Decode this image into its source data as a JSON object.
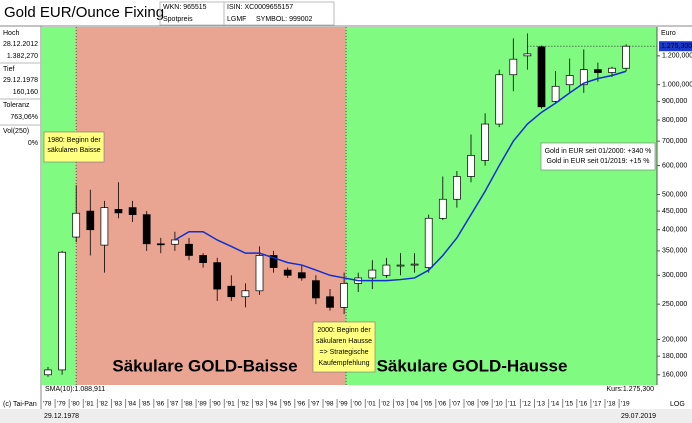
{
  "header": {
    "title": "Gold EUR/Ounce Fixing",
    "wkn": "WKN: 965515",
    "source": "Spotpreis",
    "isin": "ISIN: XC0009655157",
    "exchange": "LGMF",
    "symbol": "SYMBOL: 999002"
  },
  "stats": [
    "Hoch",
    "28.12.2012",
    "1.382,270",
    "Tief",
    "29.12.1978",
    "160,160",
    "Toleranz",
    "763,06%",
    "Vol(250)",
    "0%"
  ],
  "footer": {
    "copyright": "(c) Tai-Pan",
    "scale": "LOG",
    "start_date": "29.12.1978",
    "end_date": "29.07.2019"
  },
  "chart_data": {
    "type": "candlestick",
    "y_axis_label": "Euro",
    "log_scale": true,
    "background": "#80fa80",
    "x": [
      "'78",
      "'79",
      "'80",
      "'81",
      "'82",
      "'83",
      "'84",
      "'85",
      "'86",
      "'87",
      "'88",
      "'89",
      "'90",
      "'91",
      "'92",
      "'93",
      "'94",
      "'95",
      "'96",
      "'97",
      "'98",
      "'99",
      "'00",
      "'01",
      "'02",
      "'03",
      "'04",
      "'05",
      "'06",
      "'07",
      "'08",
      "'09",
      "'10",
      "'11",
      "'12",
      "'13",
      "'14",
      "'15",
      "'16",
      "'17",
      "'18",
      "'19"
    ],
    "open": [
      160,
      165,
      382,
      450,
      363,
      455,
      460,
      440,
      366,
      365,
      365,
      340,
      325,
      280,
      262,
      272,
      340,
      310,
      305,
      290,
      262,
      245,
      285,
      295,
      300,
      320,
      320,
      315,
      430,
      485,
      560,
      620,
      780,
      1065,
      1200,
      1270,
      900,
      1000,
      1000,
      1100,
      1080,
      1110
    ],
    "high": [
      168,
      350,
      530,
      515,
      480,
      540,
      480,
      450,
      380,
      395,
      380,
      345,
      335,
      300,
      285,
      360,
      350,
      315,
      320,
      300,
      275,
      305,
      305,
      330,
      335,
      345,
      345,
      440,
      560,
      580,
      730,
      835,
      1100,
      1340,
      1382,
      1280,
      1090,
      1180,
      1250,
      1150,
      1120,
      1290
    ],
    "low": [
      158,
      160,
      370,
      340,
      305,
      430,
      420,
      350,
      345,
      350,
      330,
      315,
      255,
      255,
      245,
      265,
      305,
      295,
      290,
      250,
      240,
      235,
      270,
      275,
      295,
      300,
      305,
      305,
      425,
      460,
      540,
      600,
      765,
      960,
      1100,
      860,
      890,
      955,
      950,
      1020,
      1050,
      1090
    ],
    "close": [
      165,
      347,
      444,
      400,
      460,
      445,
      440,
      366,
      365,
      375,
      340,
      325,
      275,
      262,
      272,
      340,
      315,
      300,
      295,
      260,
      245,
      285,
      295,
      310,
      320,
      320,
      322,
      430,
      485,
      560,
      640,
      780,
      1065,
      1175,
      1215,
      870,
      990,
      1060,
      1100,
      1080,
      1110,
      1275.3
    ],
    "series": [
      {
        "name": "SMA(10)",
        "color": "#1030d0",
        "values": [
          null,
          null,
          null,
          null,
          null,
          null,
          null,
          null,
          null,
          375,
          395,
          395,
          375,
          360,
          345,
          345,
          335,
          325,
          320,
          310,
          300,
          295,
          290,
          290,
          290,
          292,
          295,
          310,
          340,
          380,
          440,
          510,
          600,
          700,
          780,
          840,
          890,
          950,
          1010,
          1040,
          1060,
          1089
        ]
      }
    ],
    "sma_label": "SMA(10):1.088,911",
    "price_label": "Kurs:1.275,300",
    "last_price_tag": "1.275,300",
    "ylim": [
      150,
      1440
    ],
    "yticks": [
      {
        "value": 1200,
        "label": "1.200,000"
      },
      {
        "value": 1000,
        "label": "1.000,000"
      },
      {
        "value": 900,
        "label": "900,000"
      },
      {
        "value": 800,
        "label": "800,000"
      },
      {
        "value": 700,
        "label": "700,000"
      },
      {
        "value": 600,
        "label": "600,000"
      },
      {
        "value": 500,
        "label": "500,000"
      },
      {
        "value": 450,
        "label": "450,000"
      },
      {
        "value": 400,
        "label": "400,000"
      },
      {
        "value": 350,
        "label": "350,000"
      },
      {
        "value": 300,
        "label": "300,000"
      },
      {
        "value": 250,
        "label": "250,000"
      },
      {
        "value": 200,
        "label": "200,000"
      },
      {
        "value": 180,
        "label": "180,000"
      },
      {
        "value": 160,
        "label": "160,000"
      }
    ],
    "regions": [
      {
        "start": "'80",
        "end": "'99",
        "color": "#e9a492",
        "label": "Säkulare GOLD-Baisse",
        "label_color": "#e01818"
      },
      {
        "start": "'99",
        "end": "'19",
        "color": "#80fa80",
        "label": "Säkulare GOLD-Hausse",
        "label_color": "#1a8a2a"
      }
    ],
    "annotations": [
      {
        "lines": [
          "1980: Beginn der",
          "säkularen Baisse"
        ],
        "color": "#ffff80",
        "text_color": "#d01010"
      },
      {
        "lines": [
          "2000: Beginn der",
          "säkularen Hausse",
          "=> Strategische",
          "Kaufempfehlung"
        ],
        "color": "#ffff80",
        "text_color": "#000000"
      },
      {
        "lines": [
          "Gold in EUR seit 01/2000:  +340 %",
          "Gold in EUR seit 01/2019:  +15 %"
        ],
        "color": "#ffffff",
        "text_color": "#000000"
      }
    ]
  }
}
